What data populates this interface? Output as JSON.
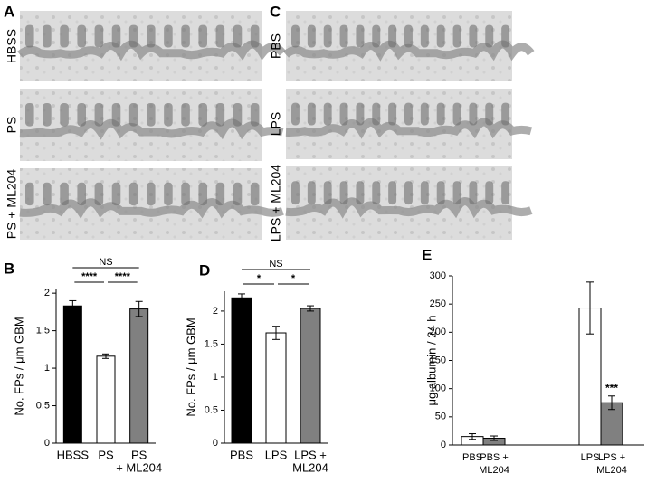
{
  "micrographs": [
    {
      "letter": "A",
      "labels": [
        "HBSS",
        "PS",
        "PS + ML204"
      ]
    },
    {
      "letter": "C",
      "labels": [
        "PBS",
        "LPS",
        "LPS + ML204"
      ]
    }
  ],
  "chart_data": [
    {
      "type": "bar",
      "panel": "B",
      "y_label": "No. FPs / μm GBM",
      "categories": [
        [
          "HBSS"
        ],
        [
          "PS"
        ],
        [
          "PS",
          "+ ML204"
        ]
      ],
      "values": [
        1.83,
        1.16,
        1.79
      ],
      "errors": [
        0.07,
        0.03,
        0.1
      ],
      "colors": [
        "#000000",
        "#ffffff",
        "#808080"
      ],
      "ylim": [
        0,
        2.05
      ],
      "yticks": [
        0,
        0.5,
        1,
        1.5,
        2
      ],
      "annotations": [
        {
          "from": 0,
          "to": 2,
          "label": "NS"
        },
        {
          "from": 0,
          "to": 1,
          "label": "****"
        },
        {
          "from": 1,
          "to": 2,
          "label": "****"
        }
      ]
    },
    {
      "type": "bar",
      "panel": "D",
      "y_label": "No. FPs / μm GBM",
      "categories": [
        [
          "PBS"
        ],
        [
          "LPS"
        ],
        [
          "LPS +",
          "ML204"
        ]
      ],
      "values": [
        2.2,
        1.67,
        2.04
      ],
      "errors": [
        0.06,
        0.1,
        0.04
      ],
      "colors": [
        "#000000",
        "#ffffff",
        "#808080"
      ],
      "ylim": [
        0,
        2.3
      ],
      "yticks": [
        0,
        0.5,
        1,
        1.5,
        2
      ],
      "annotations": [
        {
          "from": 0,
          "to": 2,
          "label": "NS"
        },
        {
          "from": 0,
          "to": 1,
          "label": "*"
        },
        {
          "from": 1,
          "to": 2,
          "label": "*"
        }
      ]
    },
    {
      "type": "bar",
      "panel": "E",
      "y_label": "μg albumin / 24 h",
      "categories": [
        [
          "PBS"
        ],
        [
          "PBS +",
          "ML204"
        ],
        [
          "LPS"
        ],
        [
          "LPS +",
          "ML204"
        ]
      ],
      "values": [
        15,
        12,
        243,
        75
      ],
      "errors": [
        5,
        4,
        46,
        12
      ],
      "colors": [
        "#ffffff",
        "#808080",
        "#ffffff",
        "#808080"
      ],
      "ylim": [
        0,
        300
      ],
      "yticks": [
        0,
        50,
        100,
        150,
        200,
        250,
        300
      ],
      "value_marks": [
        {
          "index": 3,
          "label": "***"
        }
      ]
    }
  ]
}
